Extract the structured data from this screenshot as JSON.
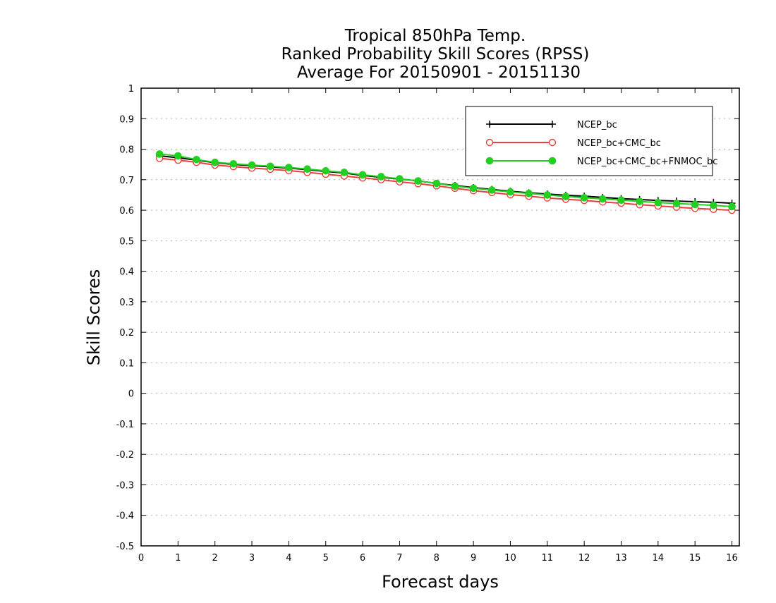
{
  "chart_data": {
    "type": "line",
    "title": [
      "Tropical 850hPa Temp.",
      "Ranked Probability Skill Scores (RPSS)",
      "Average For 20150901 - 20151130"
    ],
    "xlabel": "Forecast days",
    "ylabel": "Skill Scores",
    "xlim": [
      0,
      16.2
    ],
    "ylim": [
      -0.5,
      1
    ],
    "xticks": [
      0,
      1,
      2,
      3,
      4,
      5,
      6,
      7,
      8,
      9,
      10,
      11,
      12,
      13,
      14,
      15,
      16
    ],
    "yticks": [
      -0.5,
      -0.4,
      -0.3,
      -0.2,
      -0.1,
      0,
      0.1,
      0.2,
      0.3,
      0.4,
      0.5,
      0.6,
      0.7,
      0.8,
      0.9,
      1
    ],
    "ytick_labels": [
      "-0.5",
      "-0.4",
      "-0.3",
      "-0.2",
      "-0.1",
      "0",
      "0.1",
      "0.2",
      "0.3",
      "0.4",
      "0.5",
      "0.6",
      "0.7",
      "0.8",
      "0.9",
      "1"
    ],
    "grid": "horizontal dotted",
    "legend_position": "top-right",
    "x": [
      0.5,
      1,
      1.5,
      2,
      2.5,
      3,
      3.5,
      4,
      4.5,
      5,
      5.5,
      6,
      6.5,
      7,
      7.5,
      8,
      8.5,
      9,
      9.5,
      10,
      10.5,
      11,
      11.5,
      12,
      12.5,
      13,
      13.5,
      14,
      14.5,
      15,
      15.5,
      16
    ],
    "series": [
      {
        "name": "NCEP_bc",
        "color": "#000000",
        "marker": "plus",
        "values": [
          0.778,
          0.772,
          0.764,
          0.756,
          0.75,
          0.746,
          0.742,
          0.738,
          0.733,
          0.727,
          0.722,
          0.714,
          0.708,
          0.702,
          0.696,
          0.688,
          0.681,
          0.674,
          0.668,
          0.662,
          0.657,
          0.653,
          0.649,
          0.646,
          0.642,
          0.638,
          0.635,
          0.632,
          0.63,
          0.628,
          0.626,
          0.623
        ]
      },
      {
        "name": "NCEP_bc+CMC_bc",
        "color": "#e8403a",
        "marker": "open-circle",
        "values": [
          0.77,
          0.764,
          0.757,
          0.748,
          0.743,
          0.738,
          0.734,
          0.73,
          0.724,
          0.718,
          0.712,
          0.706,
          0.7,
          0.693,
          0.687,
          0.68,
          0.672,
          0.664,
          0.658,
          0.651,
          0.646,
          0.64,
          0.636,
          0.632,
          0.627,
          0.623,
          0.618,
          0.614,
          0.61,
          0.606,
          0.603,
          0.6
        ]
      },
      {
        "name": "NCEP_bc+CMC_bc+FNMOC_bc",
        "color": "#22d022",
        "marker": "filled-circle",
        "values": [
          0.784,
          0.778,
          0.766,
          0.757,
          0.752,
          0.748,
          0.744,
          0.74,
          0.735,
          0.729,
          0.724,
          0.716,
          0.71,
          0.703,
          0.696,
          0.688,
          0.679,
          0.672,
          0.666,
          0.66,
          0.655,
          0.65,
          0.645,
          0.641,
          0.637,
          0.633,
          0.629,
          0.625,
          0.622,
          0.619,
          0.616,
          0.612
        ]
      }
    ]
  }
}
